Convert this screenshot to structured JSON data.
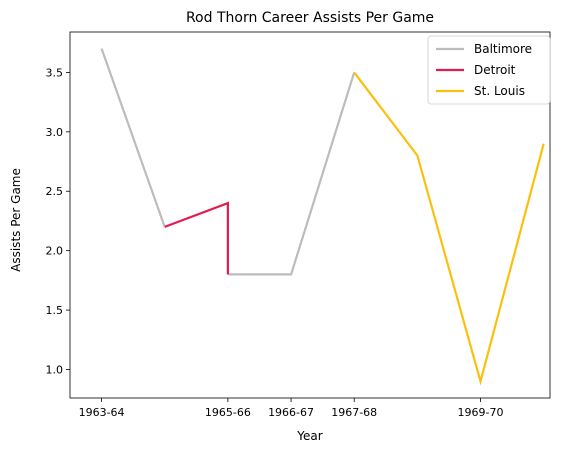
{
  "chart_data": {
    "type": "line",
    "title": "Rod Thorn Career Assists Per Game",
    "xlabel": "Year",
    "ylabel": "Assists Per Game",
    "xlim": [
      1963.5,
      1971.1
    ],
    "ylim": [
      0.76,
      3.84
    ],
    "x_ticks": [
      {
        "value": 1964.0,
        "label": "1963-64"
      },
      {
        "value": 1966.0,
        "label": "1965-66"
      },
      {
        "value": 1967.0,
        "label": "1966-67"
      },
      {
        "value": 1968.0,
        "label": "1967-68"
      },
      {
        "value": 1970.0,
        "label": "1969-70"
      }
    ],
    "y_ticks": [
      1.0,
      1.5,
      2.0,
      2.5,
      3.0,
      3.5
    ],
    "y_tick_labels": [
      "1.0",
      "1.5",
      "2.0",
      "2.5",
      "3.0",
      "3.5"
    ],
    "grid": false,
    "legend_position": "top-right",
    "series": [
      {
        "name": "Baltimore",
        "color": "#bcbcbc",
        "segments": [
          [
            [
              1964.0,
              3.7
            ],
            [
              1965.0,
              2.2
            ]
          ],
          [
            [
              1966.0,
              1.8
            ],
            [
              1967.0,
              1.8
            ],
            [
              1968.0,
              3.5
            ]
          ]
        ]
      },
      {
        "name": "Detroit",
        "color": "#e31b4f",
        "segments": [
          [
            [
              1965.0,
              2.2
            ],
            [
              1966.0,
              2.4
            ],
            [
              1966.0,
              1.8
            ]
          ]
        ]
      },
      {
        "name": "St. Louis",
        "color": "#fbc00e",
        "segments": [
          [
            [
              1968.0,
              3.5
            ],
            [
              1969.0,
              2.8
            ],
            [
              1970.0,
              0.9
            ],
            [
              1971.0,
              2.9
            ]
          ]
        ]
      }
    ]
  }
}
